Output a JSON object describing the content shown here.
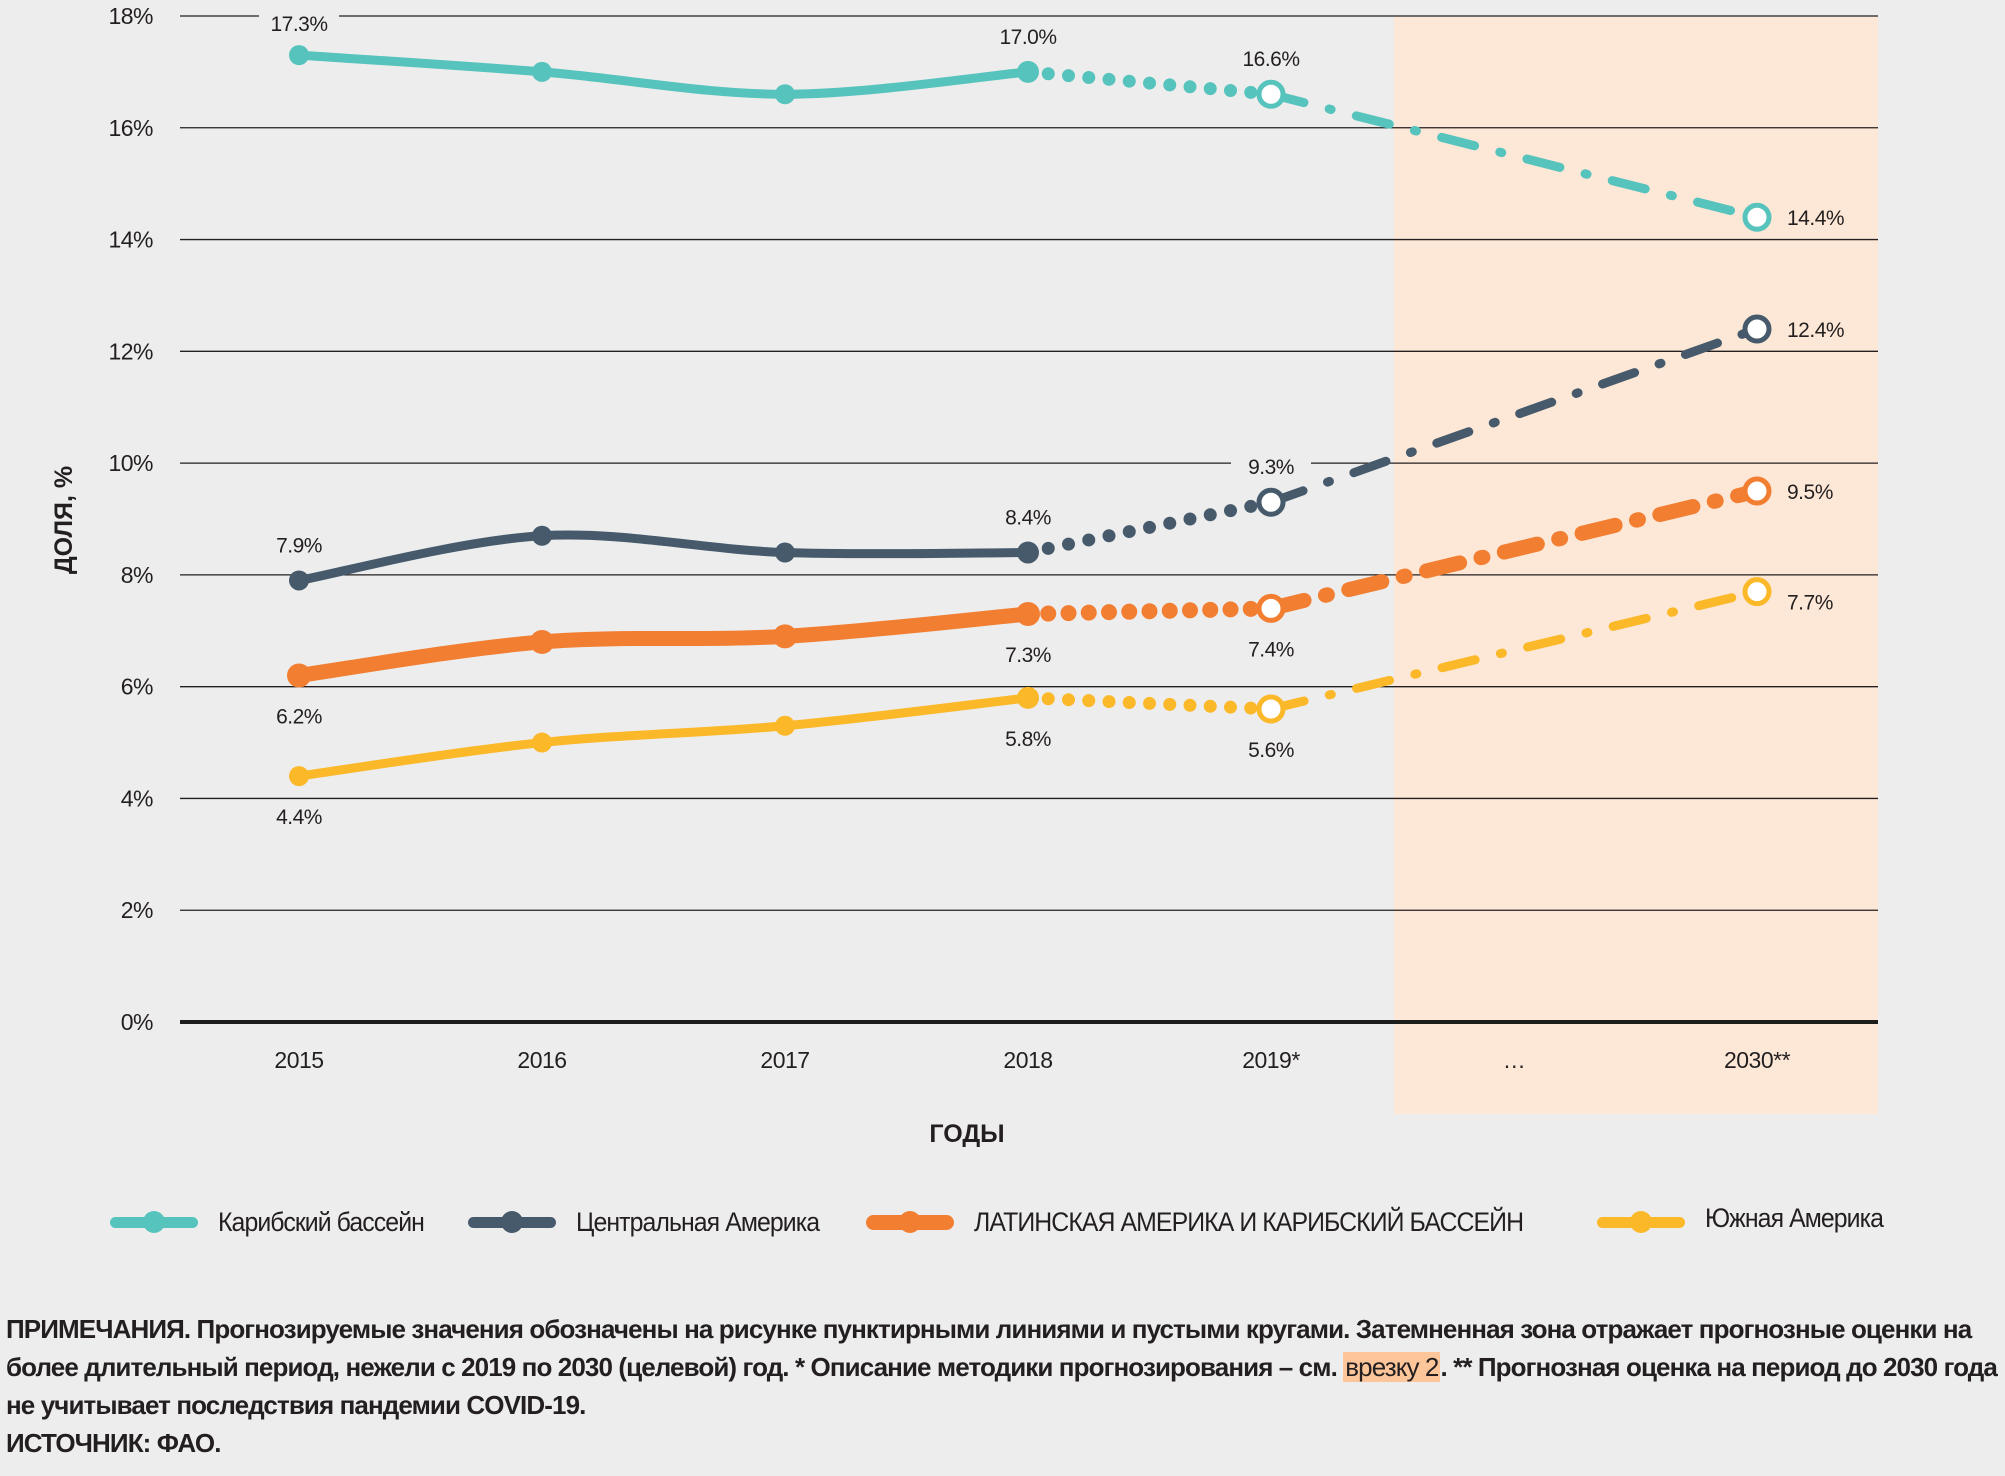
{
  "chart_data": {
    "type": "line",
    "title": "",
    "xlabel": "ГОДЫ",
    "ylabel": "ДОЛЯ, %",
    "ylim": [
      0,
      18
    ],
    "yticks": [
      "0%",
      "2%",
      "4%",
      "6%",
      "8%",
      "10%",
      "12%",
      "14%",
      "16%",
      "18%"
    ],
    "ytick_values": [
      0,
      2,
      4,
      6,
      8,
      10,
      12,
      14,
      16,
      18
    ],
    "grid": true,
    "categories": [
      "2015",
      "2016",
      "2017",
      "2018",
      "2019*",
      "…",
      "2030**"
    ],
    "shaded_region": {
      "from_category": "…",
      "to_category": "2030**",
      "color": "#fde8d7",
      "meaning": "long-term projection"
    },
    "series": [
      {
        "name": "Карибский бассейн",
        "color": "#56c3bd",
        "values": [
          17.3,
          17.0,
          16.6,
          17.0,
          16.6,
          null,
          14.4
        ],
        "projected_from_index": 3,
        "labels": {
          "0": "17.3%",
          "3": "17.0%",
          "4": "16.6%",
          "6": "14.4%"
        },
        "label_pos": {
          "0": "above",
          "3": "above",
          "4": "above",
          "6": "right"
        }
      },
      {
        "name": "Центральная Америка",
        "color": "#465a6b",
        "values": [
          7.9,
          8.7,
          8.4,
          8.4,
          9.3,
          null,
          12.4
        ],
        "projected_from_index": 3,
        "labels": {
          "0": "7.9%",
          "3": "8.4%",
          "4": "9.3%",
          "6": "12.4%"
        },
        "label_pos": {
          "0": "above",
          "3": "above",
          "4": "above",
          "6": "right"
        }
      },
      {
        "name": "ЛАТИНСКАЯ АМЕРИКА И КАРИБСКИЙ БАССЕЙН",
        "color": "#f27e32",
        "thick": true,
        "values": [
          6.2,
          6.8,
          6.9,
          7.3,
          7.4,
          null,
          9.5
        ],
        "projected_from_index": 3,
        "labels": {
          "0": "6.2%",
          "3": "7.3%",
          "4": "7.4%",
          "6": "9.5%"
        },
        "label_pos": {
          "0": "below",
          "3": "below",
          "4": "below",
          "6": "right"
        }
      },
      {
        "name": "Южная Америка",
        "color": "#fbb829",
        "values": [
          4.4,
          5.0,
          5.3,
          5.8,
          5.6,
          null,
          7.7
        ],
        "projected_from_index": 3,
        "labels": {
          "0": "4.4%",
          "3": "5.8%",
          "4": "5.6%",
          "6": "7.7%"
        },
        "label_pos": {
          "0": "below",
          "3": "below",
          "4": "below",
          "6": "right-below"
        }
      }
    ],
    "legend_position": "bottom"
  },
  "colors": {
    "background": "#ededed",
    "shaded": "#fde8d7",
    "grid": "#231f20",
    "link_highlight": "#fcc59a"
  },
  "legend": [
    {
      "label": "Карибский бассейн",
      "color": "#56c3bd"
    },
    {
      "label": "Центральная Америка",
      "color": "#465a6b"
    },
    {
      "label": "ЛАТИНСКАЯ АМЕРИКА И КАРИБСКИЙ БАССЕЙН",
      "color": "#f27e32"
    },
    {
      "label": "Южная Америка",
      "color": "#fbb829"
    }
  ],
  "notes": {
    "line1": "ПРИМЕЧАНИЯ. Прогнозируемые значения обозначены на рисунке пунктирными линиями и пустыми кругами. Затемненная зона отражает прогнозные оценки на",
    "line2_before": "более длительный период, нежели с 2019 по 2030 (целевой) год. * Описание методики прогнозирования – см. ",
    "line2_link": "врезку 2",
    "line2_after": ". ** Прогнозная оценка на период до 2030 года",
    "line3": "не учитывает последствия пандемии COVID-19.",
    "source": "ИСТОЧНИК: ФАО."
  }
}
